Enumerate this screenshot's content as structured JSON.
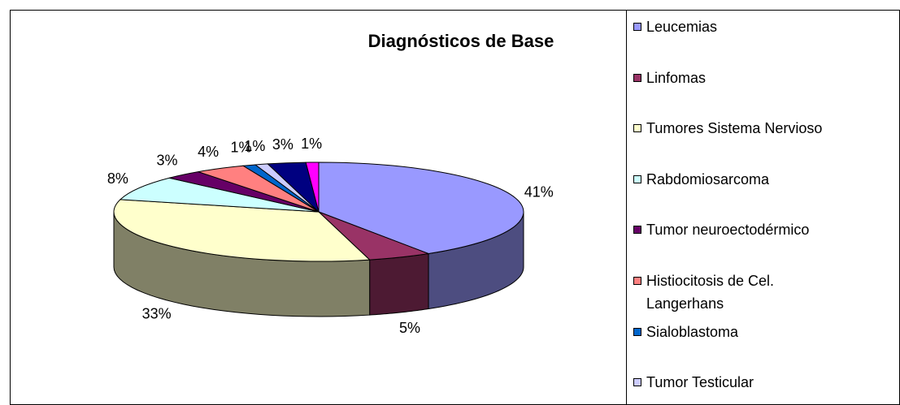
{
  "chart_data": {
    "type": "pie3d",
    "title": "Diagnósticos de Base",
    "categories": [
      "Leucemias",
      "Linfomas",
      "Tumores  Sistema Nervioso",
      "Rabdomiosarcoma",
      "Tumor neuroectodérmico",
      "Histiocitosis  de Cel.\nLangerhans",
      "Sialoblastoma",
      "Tumor Testicular",
      null,
      null
    ],
    "values": [
      41,
      5,
      33,
      8,
      3,
      4,
      1,
      1,
      3,
      1
    ],
    "value_labels": [
      "41%",
      "5%",
      "33%",
      "8%",
      "3%",
      "4%",
      "1%",
      "1%",
      "3%",
      "1%"
    ],
    "colors": [
      "#9999ff",
      "#993366",
      "#ffffcc",
      "#ccffff",
      "#660066",
      "#ff8080",
      "#0066cc",
      "#ccccff",
      "#000080",
      "#ff00ff"
    ],
    "legend": "right"
  }
}
